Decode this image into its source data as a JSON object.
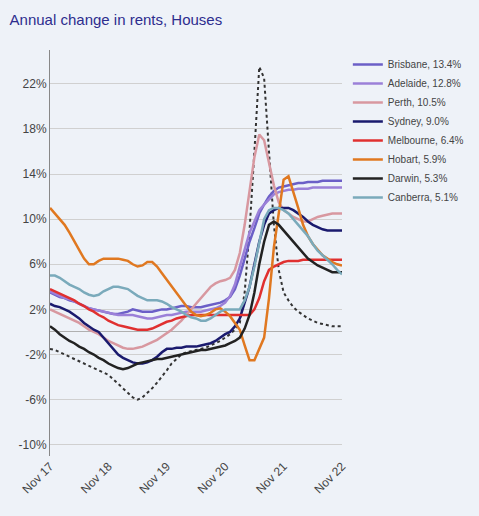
{
  "chart_data": {
    "type": "line",
    "title": "Annual change in rents, Houses",
    "categories": [
      "Nov 17",
      null,
      null,
      null,
      null,
      null,
      null,
      null,
      null,
      null,
      null,
      null,
      "Nov 18",
      null,
      null,
      null,
      null,
      null,
      null,
      null,
      null,
      null,
      null,
      null,
      "Nov 19",
      null,
      null,
      null,
      null,
      null,
      null,
      null,
      null,
      null,
      null,
      null,
      "Nov 20",
      null,
      null,
      null,
      null,
      null,
      null,
      null,
      null,
      null,
      null,
      null,
      "Nov 21",
      null,
      null,
      null,
      null,
      null,
      null,
      null,
      null,
      null,
      null,
      null,
      "Nov 22"
    ],
    "ylim": [
      -11,
      25
    ],
    "yticks": [
      {
        "value": -10,
        "label": "-10%"
      },
      {
        "value": -6,
        "label": "-6%"
      },
      {
        "value": -2,
        "label": "-2%"
      },
      {
        "value": 2,
        "label": "2%"
      },
      {
        "value": 6,
        "label": "6%"
      },
      {
        "value": 10,
        "label": "10%"
      },
      {
        "value": 14,
        "label": "14%"
      },
      {
        "value": 18,
        "label": "18%"
      },
      {
        "value": 22,
        "label": "22%"
      }
    ],
    "grid": "y",
    "legend": "right",
    "series": [
      {
        "color": "#333333",
        "line_style": "dotted",
        "values": [
          -1.5,
          -1.6,
          -1.8,
          -2.0,
          -2.2,
          -2.4,
          -2.6,
          -2.8,
          -3.0,
          -3.2,
          -3.4,
          -3.6,
          -3.8,
          -4.2,
          -4.6,
          -5.0,
          -5.4,
          -5.8,
          -6.0,
          -5.8,
          -5.4,
          -5.0,
          -4.5,
          -4.0,
          -3.4,
          -2.8,
          -2.4,
          -2.0,
          -1.8,
          -1.7,
          -1.6,
          -1.5,
          -1.4,
          -1.2,
          -1.0,
          -0.8,
          -0.5,
          -0.2,
          0.2,
          0.8,
          3.5,
          9.0,
          16.0,
          23.5,
          22.5,
          16.0,
          9.5,
          5.5,
          3.5,
          2.8,
          2.2,
          1.8,
          1.5,
          1.2,
          1.0,
          0.8,
          0.7,
          0.6,
          0.5,
          0.5,
          0.5
        ]
      },
      {
        "name": "Brisbane, 13.4%",
        "color": "#6b5fc7",
        "values": [
          3.5,
          3.3,
          3.1,
          3.0,
          2.8,
          2.7,
          2.5,
          2.3,
          2.1,
          2.0,
          1.9,
          1.8,
          1.7,
          1.6,
          1.6,
          1.7,
          1.8,
          2.0,
          1.9,
          1.8,
          1.8,
          1.8,
          1.9,
          2.0,
          2.0,
          2.1,
          2.2,
          2.3,
          2.3,
          2.2,
          2.2,
          2.2,
          2.3,
          2.4,
          2.5,
          2.6,
          2.8,
          3.1,
          3.8,
          5.0,
          6.5,
          8.0,
          9.2,
          10.5,
          11.3,
          12.0,
          12.5,
          12.8,
          12.9,
          13.0,
          13.1,
          13.2,
          13.2,
          13.3,
          13.3,
          13.3,
          13.4,
          13.4,
          13.4,
          13.4,
          13.4
        ]
      },
      {
        "name": "Adelaide, 12.8%",
        "color": "#9b80d8",
        "values": [
          3.6,
          3.4,
          3.2,
          3.0,
          2.9,
          2.7,
          2.5,
          2.3,
          2.1,
          2.0,
          1.9,
          1.8,
          1.7,
          1.6,
          1.5,
          1.5,
          1.5,
          1.5,
          1.4,
          1.3,
          1.2,
          1.2,
          1.3,
          1.4,
          1.5,
          1.5,
          1.6,
          1.7,
          1.8,
          1.8,
          1.8,
          1.8,
          1.9,
          2.0,
          2.1,
          2.3,
          2.6,
          3.2,
          4.2,
          5.8,
          7.3,
          8.8,
          9.8,
          10.8,
          11.3,
          11.8,
          12.2,
          12.4,
          12.5,
          12.6,
          12.6,
          12.7,
          12.7,
          12.7,
          12.8,
          12.8,
          12.8,
          12.8,
          12.8,
          12.8,
          12.8
        ]
      },
      {
        "name": "Perth, 10.5%",
        "color": "#d898a0",
        "values": [
          2.0,
          1.8,
          1.6,
          1.4,
          1.2,
          1.0,
          0.8,
          0.5,
          0.2,
          0.0,
          -0.2,
          -0.5,
          -0.8,
          -1.0,
          -1.2,
          -1.4,
          -1.5,
          -1.5,
          -1.4,
          -1.3,
          -1.1,
          -0.9,
          -0.7,
          -0.4,
          -0.1,
          0.2,
          0.6,
          1.0,
          1.5,
          2.0,
          2.5,
          3.0,
          3.5,
          4.0,
          4.3,
          4.5,
          4.6,
          4.8,
          5.5,
          7.0,
          9.5,
          12.5,
          15.5,
          17.5,
          17.0,
          15.0,
          13.0,
          11.5,
          10.8,
          10.5,
          10.2,
          10.0,
          9.8,
          9.8,
          10.0,
          10.2,
          10.3,
          10.4,
          10.5,
          10.5,
          10.5
        ]
      },
      {
        "name": "Sydney, 9.0%",
        "color": "#1a1a6e",
        "values": [
          2.5,
          2.3,
          2.2,
          2.0,
          1.8,
          1.5,
          1.2,
          0.8,
          0.5,
          0.2,
          0.0,
          -0.5,
          -1.0,
          -1.5,
          -2.0,
          -2.3,
          -2.5,
          -2.7,
          -2.8,
          -2.8,
          -2.7,
          -2.5,
          -2.2,
          -1.8,
          -1.5,
          -1.5,
          -1.4,
          -1.4,
          -1.3,
          -1.3,
          -1.3,
          -1.2,
          -1.1,
          -1.0,
          -0.8,
          -0.5,
          -0.2,
          0.0,
          0.5,
          1.2,
          2.5,
          4.0,
          6.0,
          8.0,
          9.5,
          10.5,
          10.8,
          11.0,
          11.0,
          11.0,
          10.8,
          10.5,
          10.2,
          9.8,
          9.5,
          9.3,
          9.1,
          9.0,
          9.0,
          9.0,
          9.0
        ]
      },
      {
        "name": "Melbourne, 6.4%",
        "color": "#e03030",
        "values": [
          3.8,
          3.6,
          3.4,
          3.2,
          3.0,
          2.8,
          2.5,
          2.3,
          2.0,
          1.8,
          1.5,
          1.3,
          1.0,
          0.8,
          0.6,
          0.5,
          0.4,
          0.3,
          0.2,
          0.2,
          0.2,
          0.3,
          0.5,
          0.7,
          0.9,
          1.0,
          1.2,
          1.3,
          1.4,
          1.5,
          1.5,
          1.5,
          1.5,
          1.5,
          1.5,
          1.5,
          1.5,
          1.5,
          1.5,
          1.5,
          1.5,
          1.5,
          2.0,
          3.0,
          4.5,
          5.5,
          5.8,
          6.0,
          6.2,
          6.3,
          6.3,
          6.3,
          6.4,
          6.4,
          6.4,
          6.4,
          6.4,
          6.4,
          6.4,
          6.4,
          6.4
        ]
      },
      {
        "name": "Hobart, 5.9%",
        "color": "#e07820",
        "values": [
          11.0,
          10.5,
          10.0,
          9.5,
          8.8,
          8.0,
          7.2,
          6.5,
          6.0,
          6.0,
          6.3,
          6.5,
          6.5,
          6.5,
          6.5,
          6.4,
          6.3,
          6.0,
          5.8,
          5.9,
          6.2,
          6.2,
          5.8,
          5.2,
          4.6,
          4.0,
          3.4,
          2.8,
          2.3,
          1.8,
          1.5,
          1.4,
          1.5,
          1.7,
          2.0,
          2.1,
          1.8,
          1.4,
          0.8,
          0.2,
          -1.2,
          -2.5,
          -2.5,
          -1.5,
          -0.5,
          3.0,
          7.5,
          10.5,
          13.5,
          13.8,
          12.5,
          11.0,
          9.5,
          8.5,
          7.8,
          7.3,
          6.8,
          6.5,
          6.2,
          6.0,
          5.9
        ]
      },
      {
        "name": "Darwin, 5.3%",
        "color": "#222222",
        "values": [
          0.5,
          0.2,
          -0.2,
          -0.5,
          -0.8,
          -1.0,
          -1.3,
          -1.5,
          -1.8,
          -2.0,
          -2.3,
          -2.5,
          -2.8,
          -3.0,
          -3.2,
          -3.3,
          -3.2,
          -3.0,
          -2.8,
          -2.7,
          -2.6,
          -2.5,
          -2.4,
          -2.4,
          -2.3,
          -2.2,
          -2.1,
          -2.0,
          -1.9,
          -1.8,
          -1.7,
          -1.6,
          -1.6,
          -1.5,
          -1.4,
          -1.3,
          -1.2,
          -1.0,
          -0.8,
          -0.5,
          0.3,
          1.5,
          3.5,
          6.0,
          8.0,
          9.5,
          9.8,
          9.5,
          9.0,
          8.5,
          8.0,
          7.5,
          7.0,
          6.5,
          6.2,
          5.9,
          5.7,
          5.5,
          5.3,
          5.3,
          5.3
        ]
      },
      {
        "name": "Canberra, 5.1%",
        "color": "#7aaabb",
        "values": [
          5.0,
          5.0,
          4.8,
          4.5,
          4.2,
          4.0,
          3.8,
          3.5,
          3.3,
          3.2,
          3.3,
          3.6,
          3.8,
          4.0,
          4.0,
          3.9,
          3.8,
          3.5,
          3.2,
          3.0,
          2.8,
          2.8,
          2.8,
          2.7,
          2.5,
          2.2,
          2.0,
          1.8,
          1.5,
          1.3,
          1.2,
          1.0,
          1.0,
          1.2,
          1.5,
          1.8,
          2.0,
          2.0,
          2.0,
          2.0,
          2.8,
          4.0,
          5.8,
          8.0,
          10.0,
          10.8,
          11.0,
          11.0,
          10.8,
          10.5,
          10.0,
          9.5,
          9.0,
          8.5,
          7.8,
          7.2,
          6.8,
          6.4,
          6.0,
          5.5,
          5.1
        ]
      }
    ]
  }
}
